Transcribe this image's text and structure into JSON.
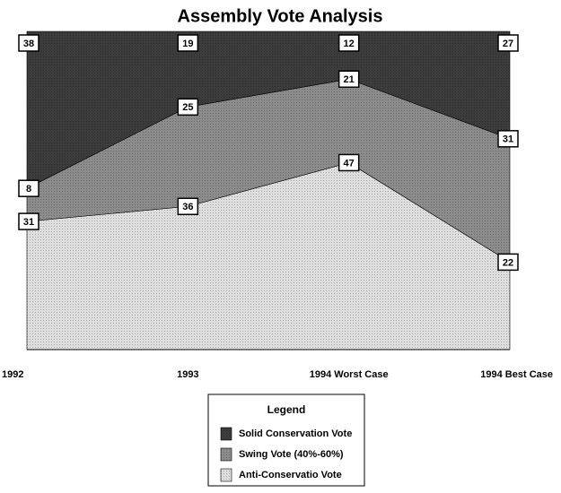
{
  "chart_data": {
    "type": "area",
    "stacking": "percent",
    "title": "Assembly Vote Analysis",
    "categories": [
      "1992",
      "1993",
      "1994 Worst Case",
      "1994 Best Case"
    ],
    "series": [
      {
        "name": "Solid Conservation Vote",
        "color": "#3c3c3c",
        "values": [
          38,
          19,
          12,
          27
        ]
      },
      {
        "name": "Swing Vote (40%-60%)",
        "color": "#8c8c8c",
        "values": [
          8,
          25,
          21,
          31
        ]
      },
      {
        "name": "Anti-Conservatio Vote",
        "color": "#dedede",
        "values": [
          31,
          36,
          47,
          22
        ]
      }
    ],
    "legend_title": "Legend",
    "legend": "bottom"
  }
}
